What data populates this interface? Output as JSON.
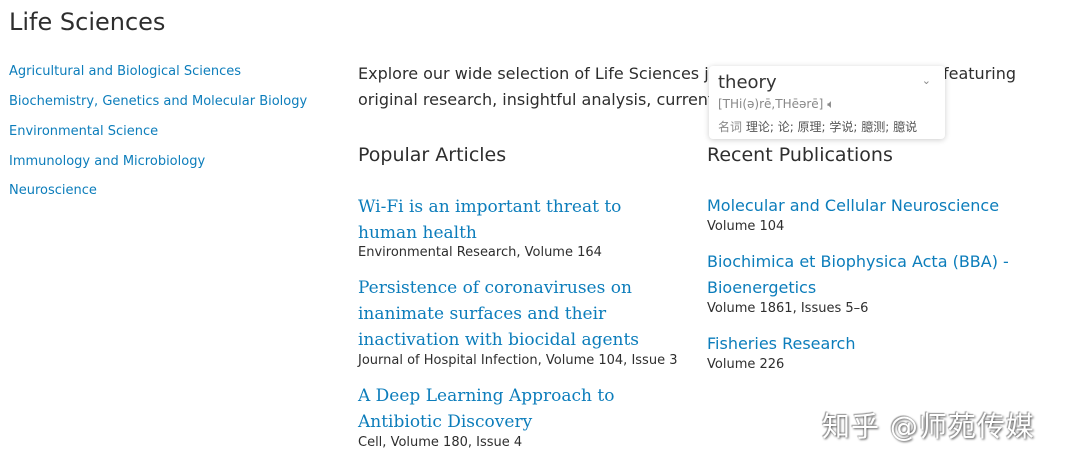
{
  "page_title": "Life Sciences",
  "sidebar": {
    "items": [
      {
        "label": "Agricultural and Biological Sciences"
      },
      {
        "label": "Biochemistry, Genetics and Molecular Biology"
      },
      {
        "label": "Environmental Science"
      },
      {
        "label": "Immunology and Microbiology"
      },
      {
        "label": "Neuroscience"
      }
    ]
  },
  "intro": {
    "line1_start": "Explore our wide selection of Life Sciences jou",
    "line1_end": "featuring",
    "line2": "original research, insightful analysis, current th"
  },
  "popular": {
    "heading": "Popular Articles",
    "items": [
      {
        "title_lines": [
          "Wi-Fi is an important threat to",
          "human health"
        ],
        "source": "Environmental Research, Volume 164"
      },
      {
        "title_lines": [
          "Persistence of coronaviruses on",
          "inanimate surfaces and their",
          "inactivation with biocidal agents"
        ],
        "source": "Journal of Hospital Infection, Volume 104, Issue 3"
      },
      {
        "title_lines": [
          "A Deep Learning Approach to",
          "Antibiotic Discovery"
        ],
        "source": "Cell, Volume 180, Issue 4"
      }
    ]
  },
  "recent": {
    "heading": "Recent Publications",
    "items": [
      {
        "title_lines": [
          "Molecular and Cellular Neuroscience"
        ],
        "volume": "Volume 104"
      },
      {
        "title_lines": [
          "Biochimica et Biophysica Acta (BBA) -",
          "Bioenergetics"
        ],
        "volume": "Volume 1861, Issues 5–6"
      },
      {
        "title_lines": [
          "Fisheries Research"
        ],
        "volume": "Volume 226"
      }
    ]
  },
  "dictionary_popup": {
    "word": "theory",
    "phonetic": "[THi(ə)rē,THēərē]",
    "speaker_icon": "speaker-icon",
    "expand_icon": "chevron-down-icon",
    "pos": "名词",
    "definitions": "理论; 论; 原理; 学说; 臆测; 臆说"
  },
  "watermark": "知乎 @师苑传媒",
  "colors": {
    "link": "#0c7dbb",
    "text": "#2e2e2e"
  }
}
